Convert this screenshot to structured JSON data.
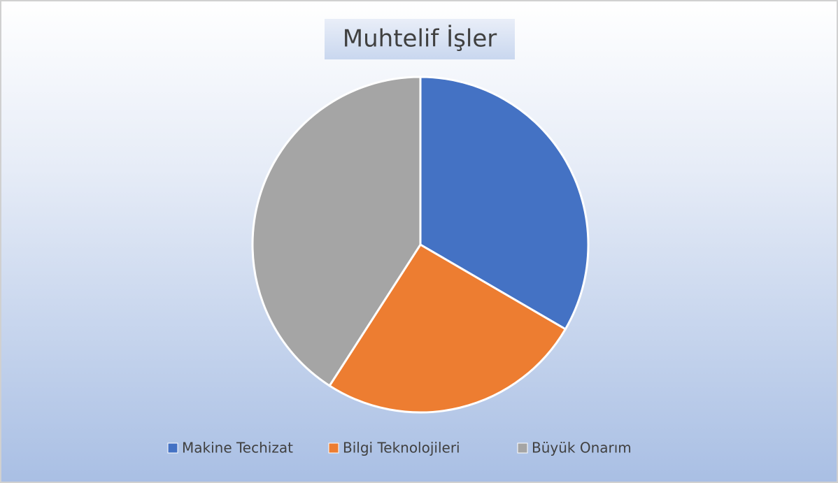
{
  "chart_data": {
    "type": "pie",
    "title": "Muhtelif İşler",
    "categories": [
      "Makine Techizat",
      "Bilgi Teknolojileri",
      "Büyük Onarım"
    ],
    "values": [
      33.4,
      25.7,
      40.9
    ],
    "colors": [
      "#4472c4",
      "#ed7d31",
      "#a5a5a5"
    ],
    "legend": "bottom"
  }
}
